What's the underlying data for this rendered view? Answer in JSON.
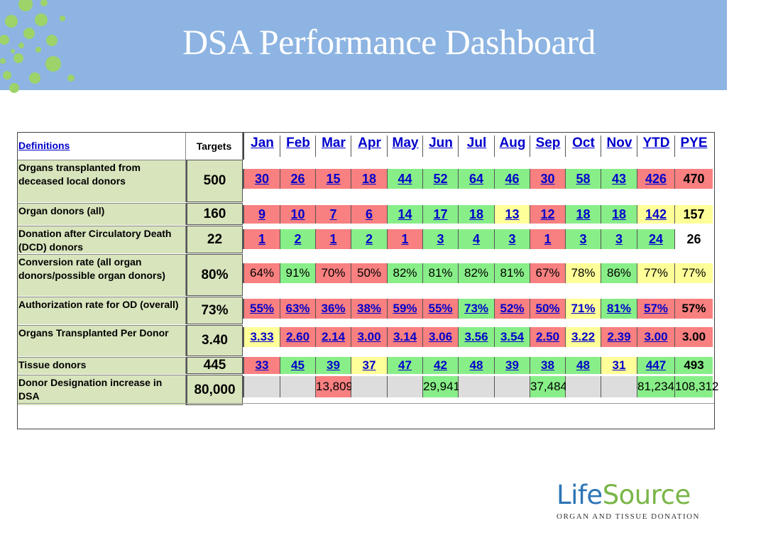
{
  "title": "DSA Performance Dashboard",
  "colors": {
    "green": "#88ee88",
    "red": "#f88080",
    "yellow": "#ffff99",
    "gray": "#dddddd",
    "label_bg": "#d8e4bc",
    "banner": "#8db4e2"
  },
  "header": {
    "definitions_label": "Definitions",
    "targets_label": "Targets",
    "months": [
      "Jan",
      "Feb",
      "Mar",
      "Apr",
      "May",
      "Jun",
      "Jul",
      "Aug",
      "Sep",
      "Oct",
      "Nov",
      "YTD",
      "PYE"
    ]
  },
  "rows": [
    {
      "label": "Organs transplanted from deceased local donors",
      "target": "500",
      "style": "link",
      "values": [
        "30",
        "26",
        "15",
        "18",
        "44",
        "52",
        "64",
        "46",
        "30",
        "58",
        "43",
        "426",
        "470"
      ],
      "status": [
        "r",
        "r",
        "r",
        "r",
        "g",
        "g",
        "g",
        "g",
        "r",
        "g",
        "g",
        "r",
        "r"
      ]
    },
    {
      "label": "Organ donors (all)",
      "target": "160",
      "style": "link",
      "values": [
        "9",
        "10",
        "7",
        "6",
        "14",
        "17",
        "18",
        "13",
        "12",
        "18",
        "18",
        "142",
        "157"
      ],
      "status": [
        "r",
        "r",
        "r",
        "r",
        "g",
        "g",
        "g",
        "y",
        "r",
        "g",
        "g",
        "y",
        "y"
      ]
    },
    {
      "label": "Donation after Circulatory Death (DCD) donors",
      "target": "22",
      "style": "link",
      "values": [
        "1",
        "2",
        "1",
        "2",
        "1",
        "3",
        "4",
        "3",
        "1",
        "3",
        "3",
        "24",
        "26"
      ],
      "status": [
        "r",
        "g",
        "r",
        "g",
        "r",
        "g",
        "g",
        "g",
        "r",
        "g",
        "g",
        "g",
        "w"
      ]
    },
    {
      "label": "Conversion rate (all organ donors/possible organ donors)",
      "target": "80%",
      "style": "plain",
      "values": [
        "64%",
        "91%",
        "70%",
        "50%",
        "82%",
        "81%",
        "82%",
        "81%",
        "67%",
        "78%",
        "86%",
        "77%",
        "77%"
      ],
      "status": [
        "r",
        "g",
        "r",
        "r",
        "g",
        "g",
        "g",
        "g",
        "r",
        "y",
        "g",
        "y",
        "y"
      ]
    },
    {
      "label": "Authorization rate for OD (overall)",
      "target": "73%",
      "style": "link",
      "values": [
        "55%",
        "63%",
        "36%",
        "38%",
        "59%",
        "55%",
        "73%",
        "52%",
        "50%",
        "71%",
        "81%",
        "57%",
        "57%"
      ],
      "status": [
        "r",
        "r",
        "r",
        "r",
        "r",
        "r",
        "g",
        "r",
        "r",
        "y",
        "g",
        "r",
        "r"
      ]
    },
    {
      "label": "Organs Transplanted Per Donor",
      "target": "3.40",
      "style": "link",
      "values": [
        "3.33",
        "2.60",
        "2.14",
        "3.00",
        "3.14",
        "3.06",
        "3.56",
        "3.54",
        "2.50",
        "3.22",
        "2.39",
        "3.00",
        "3.00"
      ],
      "status": [
        "y",
        "r",
        "r",
        "r",
        "r",
        "r",
        "g",
        "g",
        "r",
        "y",
        "r",
        "r",
        "r"
      ]
    },
    {
      "label": "Tissue donors",
      "target": "445",
      "style": "link",
      "values": [
        "33",
        "45",
        "39",
        "37",
        "47",
        "42",
        "48",
        "39",
        "38",
        "48",
        "31",
        "447",
        "493"
      ],
      "status": [
        "r",
        "g",
        "g",
        "y",
        "g",
        "g",
        "g",
        "g",
        "g",
        "g",
        "y",
        "g",
        "g"
      ]
    },
    {
      "label": "Donor Designation increase in DSA",
      "target": "80,000",
      "style": "plain",
      "values": [
        "",
        "",
        "13,809",
        "",
        "",
        "29,941",
        "",
        "",
        "37,484",
        "",
        "",
        "81,234",
        "108,312"
      ],
      "status": [
        "gray",
        "gray",
        "r",
        "gray",
        "gray",
        "g",
        "gray",
        "gray",
        "g",
        "gray",
        "gray",
        "g",
        "g"
      ]
    }
  ],
  "logo": {
    "word_a": "Life",
    "word_b": "Source",
    "tagline": "ORGAN AND TISSUE DONATION"
  }
}
